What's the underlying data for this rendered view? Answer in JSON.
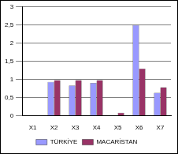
{
  "chart_data": {
    "type": "bar",
    "categories": [
      "X1",
      "X2",
      "X3",
      "X4",
      "X5",
      "X6",
      "X7"
    ],
    "series": [
      {
        "name": "TÜRKİYE",
        "color": "#9999ff",
        "values": [
          0,
          0.93,
          0.83,
          0.9,
          0,
          2.5,
          0.63
        ]
      },
      {
        "name": "MACARİSTAN",
        "color": "#993366",
        "values": [
          0,
          0.98,
          0.98,
          0.98,
          0.08,
          1.3,
          0.78
        ]
      }
    ],
    "ylim": [
      0,
      3
    ],
    "yticks": [
      0,
      {
        "value": 0.5,
        "label": "0,5"
      },
      1,
      {
        "value": 1.5,
        "label": "1,5"
      },
      2,
      {
        "value": 2.5,
        "label": "2,5"
      },
      3
    ],
    "grid": true,
    "legend": "bottom"
  }
}
